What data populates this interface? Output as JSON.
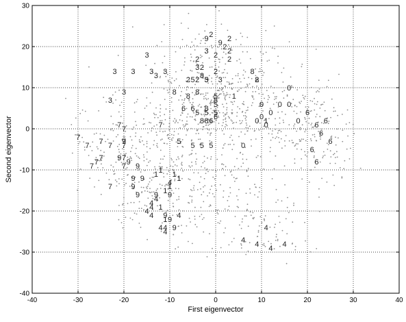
{
  "chart_data": {
    "type": "scatter",
    "title": "",
    "xlabel": "First eigenvector",
    "ylabel": "Second eigenvector",
    "xlim": [
      -40,
      40
    ],
    "ylim": [
      -40,
      30
    ],
    "xticks": [
      -40,
      -30,
      -20,
      -10,
      0,
      10,
      20,
      30,
      40
    ],
    "yticks": [
      -40,
      -30,
      -20,
      -10,
      0,
      10,
      20,
      30
    ],
    "grid": true,
    "grid_style": "dotted",
    "legend": "none",
    "colors": {
      "points": "#8c8c8c",
      "labels": "#222222",
      "axes": "#000000",
      "grid": "#000000"
    },
    "background_points": {
      "count": 1400,
      "note_shape": "small grey dots, dense cloud centred near (0,5)"
    },
    "series": [
      {
        "name": "0",
        "points": [
          [
            16,
            10
          ],
          [
            10,
            6
          ],
          [
            16,
            6
          ],
          [
            12,
            4
          ],
          [
            9,
            2
          ],
          [
            10,
            3
          ],
          [
            18,
            2
          ],
          [
            6,
            -4
          ],
          [
            14,
            6
          ],
          [
            11,
            1
          ]
        ]
      },
      {
        "name": "1",
        "points": [
          [
            4,
            8
          ],
          [
            -12,
            -10
          ],
          [
            -8,
            -12
          ],
          [
            -13,
            -11
          ],
          [
            -10,
            -14
          ],
          [
            -11,
            -15
          ],
          [
            -12,
            -19
          ],
          [
            -11,
            -22
          ],
          [
            -9,
            -11
          ],
          [
            11,
            2
          ]
        ]
      },
      {
        "name": "2",
        "points": [
          [
            -1,
            23
          ],
          [
            3,
            22
          ],
          [
            2,
            20
          ],
          [
            3,
            17
          ],
          [
            0,
            18
          ],
          [
            -4,
            17
          ],
          [
            -3,
            15
          ],
          [
            0,
            14
          ],
          [
            -4,
            12
          ],
          [
            -6,
            12
          ],
          [
            9,
            12
          ],
          [
            3,
            19
          ]
        ]
      },
      {
        "name": "3",
        "points": [
          [
            -15,
            18
          ],
          [
            -22,
            14
          ],
          [
            -18,
            14
          ],
          [
            -14,
            14
          ],
          [
            -13,
            13
          ],
          [
            -11,
            14
          ],
          [
            -20,
            9
          ],
          [
            -23,
            7
          ],
          [
            -2,
            19
          ],
          [
            -4,
            15
          ],
          [
            1,
            12
          ],
          [
            -2,
            12
          ]
        ]
      },
      {
        "name": "4",
        "points": [
          [
            -10,
            -13
          ],
          [
            -13,
            -17
          ],
          [
            -14,
            -19
          ],
          [
            -14,
            -21
          ],
          [
            -15,
            -20
          ],
          [
            -8,
            -21
          ],
          [
            -11,
            -24
          ],
          [
            -12,
            -24
          ],
          [
            -11,
            -25
          ],
          [
            -14,
            -18
          ],
          [
            6,
            -27
          ],
          [
            9,
            -28
          ],
          [
            11,
            -24
          ],
          [
            12,
            -29
          ],
          [
            15,
            -28
          ]
        ]
      },
      {
        "name": "5",
        "points": [
          [
            -4,
            4
          ],
          [
            -2,
            4
          ],
          [
            0,
            4
          ],
          [
            0,
            6
          ],
          [
            -5,
            -4
          ],
          [
            -3,
            -4
          ],
          [
            -1,
            -4
          ],
          [
            -5,
            12
          ],
          [
            -2,
            12
          ],
          [
            0,
            8
          ],
          [
            -8,
            -3
          ]
        ]
      },
      {
        "name": "6",
        "points": [
          [
            -7,
            5
          ],
          [
            0,
            3
          ],
          [
            20,
            4
          ],
          [
            22,
            1
          ],
          [
            23,
            -1
          ],
          [
            24,
            2
          ],
          [
            25,
            -3
          ],
          [
            21,
            -5
          ],
          [
            22,
            -8
          ],
          [
            -5,
            5
          ],
          [
            -1,
            2
          ]
        ]
      },
      {
        "name": "7",
        "points": [
          [
            -30,
            -2
          ],
          [
            -28,
            -4
          ],
          [
            -25,
            -3
          ],
          [
            -23,
            -4
          ],
          [
            -25,
            -7
          ],
          [
            -26,
            -8
          ],
          [
            -27,
            -9
          ],
          [
            -20,
            -3
          ],
          [
            -20,
            -4
          ],
          [
            -20,
            -7
          ],
          [
            -20,
            -9
          ],
          [
            -23,
            -14
          ],
          [
            -12,
            1
          ],
          [
            -20,
            0
          ],
          [
            -21,
            1
          ]
        ]
      },
      {
        "name": "8",
        "points": [
          [
            -6,
            8
          ],
          [
            -4,
            9
          ],
          [
            -2,
            5
          ],
          [
            0,
            7
          ],
          [
            -3,
            2
          ],
          [
            -2,
            2
          ],
          [
            8,
            14
          ],
          [
            -9,
            9
          ],
          [
            -3,
            13
          ],
          [
            9,
            12
          ]
        ]
      },
      {
        "name": "9",
        "points": [
          [
            -20,
            -3
          ],
          [
            -21,
            -7
          ],
          [
            -19,
            -8
          ],
          [
            -17,
            -9
          ],
          [
            -18,
            -12
          ],
          [
            -16,
            -12
          ],
          [
            -18,
            -14
          ],
          [
            -17,
            -16
          ],
          [
            -13,
            -16
          ],
          [
            -10,
            -16
          ],
          [
            -11,
            -21
          ],
          [
            -10,
            -22
          ],
          [
            -9,
            -24
          ],
          [
            -2,
            22
          ],
          [
            1,
            21
          ]
        ]
      }
    ]
  }
}
